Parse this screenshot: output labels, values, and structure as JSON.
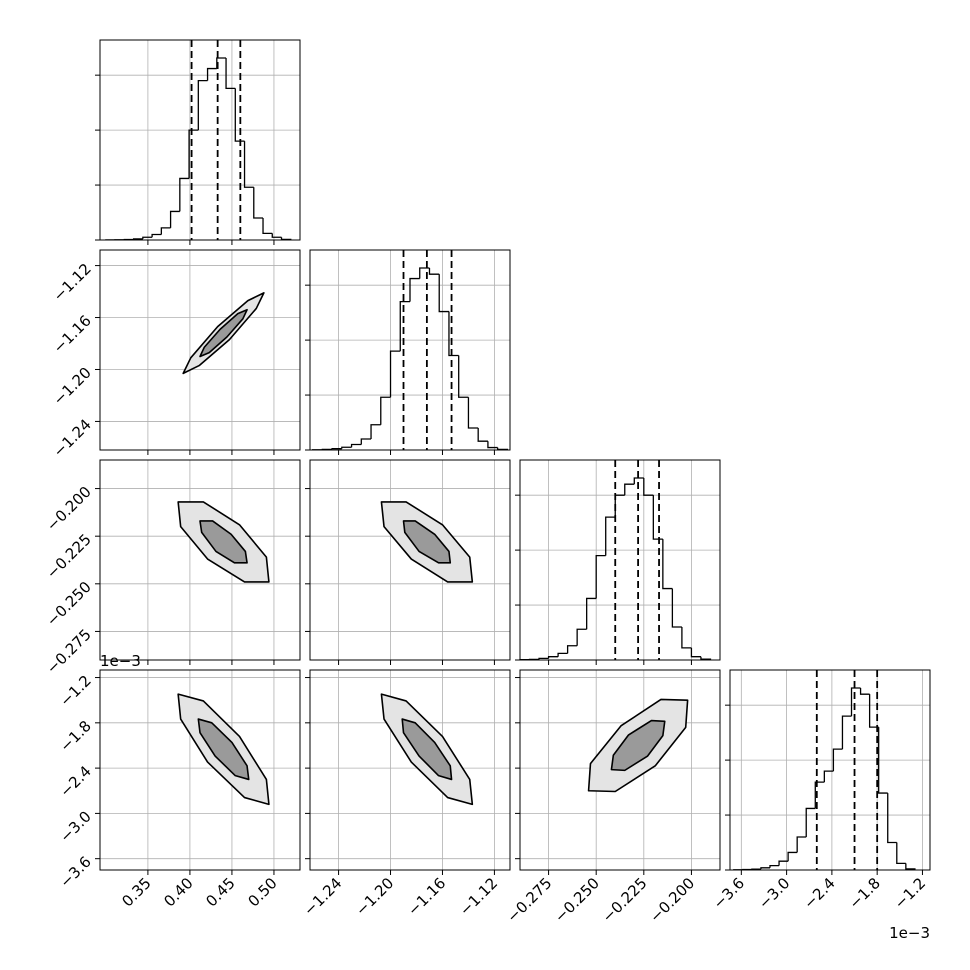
{
  "chart_data": {
    "type": "corner",
    "color": "#000000",
    "grid": true,
    "hist_ylim": [
      0,
      1820
    ],
    "hist_yticks": [
      0,
      500,
      1000,
      1500
    ],
    "params": [
      {
        "xlim": [
          0.293,
          0.531
        ],
        "xticks": [
          0.35,
          {
            "value": 0.4,
            "label": "0.40"
          },
          0.45,
          {
            "value": 0.5,
            "label": "0.50"
          }
        ],
        "bins": [
          0.3,
          0.311,
          0.322,
          0.333,
          0.344,
          0.355,
          0.366,
          0.377,
          0.388,
          0.399,
          0.41,
          0.421,
          0.432,
          0.443,
          0.454,
          0.465,
          0.476,
          0.487,
          0.498,
          0.509,
          0.52
        ],
        "counts": [
          1,
          2,
          4,
          10,
          25,
          50,
          110,
          260,
          560,
          1000,
          1450,
          1560,
          1656,
          1380,
          900,
          480,
          200,
          60,
          25,
          5
        ],
        "quantiles": [
          0.402,
          0.433,
          0.46
        ]
      },
      {
        "xlim": [
          -1.262,
          -1.108
        ],
        "xticks": [
          {
            "value": -1.24,
            "label": "−1.24"
          },
          {
            "value": -1.2,
            "label": "−1.20"
          },
          {
            "value": -1.16,
            "label": "−1.16"
          },
          {
            "value": -1.12,
            "label": "−1.12"
          }
        ],
        "bins": [
          -1.26,
          -1.2525,
          -1.245,
          -1.2375,
          -1.23,
          -1.2225,
          -1.215,
          -1.2075,
          -1.2,
          -1.1925,
          -1.185,
          -1.1775,
          -1.17,
          -1.1625,
          -1.155,
          -1.1475,
          -1.14,
          -1.1325,
          -1.125,
          -1.1175,
          -1.11
        ],
        "counts": [
          2,
          6,
          12,
          25,
          50,
          100,
          230,
          480,
          900,
          1350,
          1560,
          1656,
          1600,
          1260,
          860,
          480,
          200,
          80,
          22,
          5
        ],
        "quantiles": [
          -1.19,
          -1.172,
          -1.153
        ]
      },
      {
        "xlim": [
          -0.29,
          -0.185
        ],
        "xticks": [
          {
            "value": -0.275,
            "label": "−0.275"
          },
          {
            "value": -0.25,
            "label": "−0.250"
          },
          {
            "value": -0.225,
            "label": "−0.225"
          },
          {
            "value": -0.2,
            "label": "−0.200"
          }
        ],
        "bins": [
          -0.29,
          -0.285,
          -0.28,
          -0.275,
          -0.27,
          -0.265,
          -0.26,
          -0.255,
          -0.25,
          -0.245,
          -0.24,
          -0.235,
          -0.23,
          -0.225,
          -0.22,
          -0.215,
          -0.21,
          -0.205,
          -0.2,
          -0.195,
          -0.19
        ],
        "counts": [
          3,
          6,
          15,
          30,
          60,
          130,
          280,
          560,
          950,
          1300,
          1500,
          1600,
          1656,
          1500,
          1100,
          650,
          300,
          110,
          30,
          8
        ],
        "quantiles": [
          -0.24,
          -0.228,
          -0.217
        ]
      },
      {
        "xlim": [
          -3.75,
          -1.1
        ],
        "xticks": [
          {
            "value": -3.6,
            "label": "−3.6"
          },
          {
            "value": -3.0,
            "label": "−3.0"
          },
          {
            "value": -2.4,
            "label": "−2.4"
          },
          {
            "value": -1.8,
            "label": "−1.8"
          },
          {
            "value": -1.2,
            "label": "−1.2"
          }
        ],
        "offset": "1e−3",
        "bins": [
          -3.7,
          -3.58,
          -3.46,
          -3.34,
          -3.22,
          -3.1,
          -2.98,
          -2.86,
          -2.74,
          -2.62,
          -2.5,
          -2.38,
          -2.26,
          -2.14,
          -2.02,
          -1.9,
          -1.78,
          -1.66,
          -1.54,
          -1.42,
          -1.3
        ],
        "counts": [
          2,
          4,
          8,
          20,
          40,
          80,
          160,
          300,
          560,
          800,
          900,
          1100,
          1400,
          1656,
          1600,
          1300,
          700,
          250,
          60,
          10
        ],
        "quantiles": [
          -2.6,
          -2.1,
          -1.8
        ]
      }
    ],
    "pairs": [
      {
        "contours": [
          {
            "x": [
              0.488,
              0.479,
              0.447,
              0.411,
              0.392,
              0.401,
              0.433,
              0.469
            ],
            "y": [
              -1.141,
              -1.153,
              -1.177,
              -1.197,
              -1.203,
              -1.191,
              -1.167,
              -1.147
            ]
          },
          {
            "x": [
              0.468,
              0.463,
              0.444,
              0.423,
              0.412,
              0.417,
              0.436,
              0.457
            ],
            "y": [
              -1.154,
              -1.161,
              -1.175,
              -1.187,
              -1.19,
              -1.183,
              -1.169,
              -1.157
            ]
          }
        ]
      },
      {
        "contours": [
          {
            "x": [
              0.494,
              0.491,
              0.459,
              0.416,
              0.386,
              0.389,
              0.421,
              0.465
            ],
            "y": [
              -0.249,
              -0.236,
              -0.219,
              -0.207,
              -0.207,
              -0.22,
              -0.237,
              -0.249
            ]
          },
          {
            "x": [
              0.468,
              0.466,
              0.449,
              0.427,
              0.412,
              0.414,
              0.431,
              0.453
            ],
            "y": [
              -0.239,
              -0.233,
              -0.224,
              -0.217,
              -0.217,
              -0.223,
              -0.233,
              -0.239
            ]
          }
        ]
      },
      {
        "contours": [
          {
            "x": [
              -1.137,
              -1.139,
              -1.16,
              -1.188,
              -1.207,
              -1.205,
              -1.184,
              -1.156
            ],
            "y": [
              -0.249,
              -0.236,
              -0.219,
              -0.207,
              -0.207,
              -0.22,
              -0.237,
              -0.249
            ]
          },
          {
            "x": [
              -1.154,
              -1.155,
              -1.166,
              -1.181,
              -1.19,
              -1.189,
              -1.178,
              -1.163
            ],
            "y": [
              -0.239,
              -0.233,
              -0.224,
              -0.217,
              -0.217,
              -0.223,
              -0.233,
              -0.239
            ]
          }
        ]
      },
      {
        "contours": [
          {
            "x": [
              0.494,
              0.491,
              0.459,
              0.416,
              0.386,
              0.389,
              0.421,
              0.465
            ],
            "y": [
              -2.88,
              -2.55,
              -1.98,
              -1.51,
              -1.42,
              -1.75,
              -2.32,
              -2.79
            ]
          },
          {
            "x": [
              0.47,
              0.468,
              0.45,
              0.426,
              0.41,
              0.412,
              0.43,
              0.454
            ],
            "y": [
              -2.55,
              -2.37,
              -2.06,
              -1.8,
              -1.75,
              -1.93,
              -2.24,
              -2.5
            ]
          }
        ]
      },
      {
        "contours": [
          {
            "x": [
              -1.137,
              -1.139,
              -1.16,
              -1.188,
              -1.207,
              -1.205,
              -1.184,
              -1.156
            ],
            "y": [
              -2.88,
              -2.55,
              -1.98,
              -1.51,
              -1.42,
              -1.75,
              -2.32,
              -2.79
            ]
          },
          {
            "x": [
              -1.153,
              -1.154,
              -1.166,
              -1.181,
              -1.191,
              -1.19,
              -1.178,
              -1.163
            ],
            "y": [
              -2.55,
              -2.37,
              -2.06,
              -1.8,
              -1.75,
              -1.93,
              -2.24,
              -2.5
            ]
          }
        ]
      },
      {
        "contours": [
          {
            "x": [
              -0.202,
              -0.203,
              -0.219,
              -0.24,
              -0.254,
              -0.253,
              -0.237,
              -0.216
            ],
            "y": [
              -1.5,
              -1.86,
              -2.37,
              -2.71,
              -2.7,
              -2.34,
              -1.84,
              -1.49
            ]
          },
          {
            "x": [
              -0.214,
              -0.215,
              -0.223,
              -0.235,
              -0.242,
              -0.241,
              -0.233,
              -0.221
            ],
            "y": [
              -1.78,
              -1.97,
              -2.24,
              -2.43,
              -2.42,
              -2.23,
              -1.96,
              -1.77
            ]
          }
        ]
      }
    ]
  }
}
